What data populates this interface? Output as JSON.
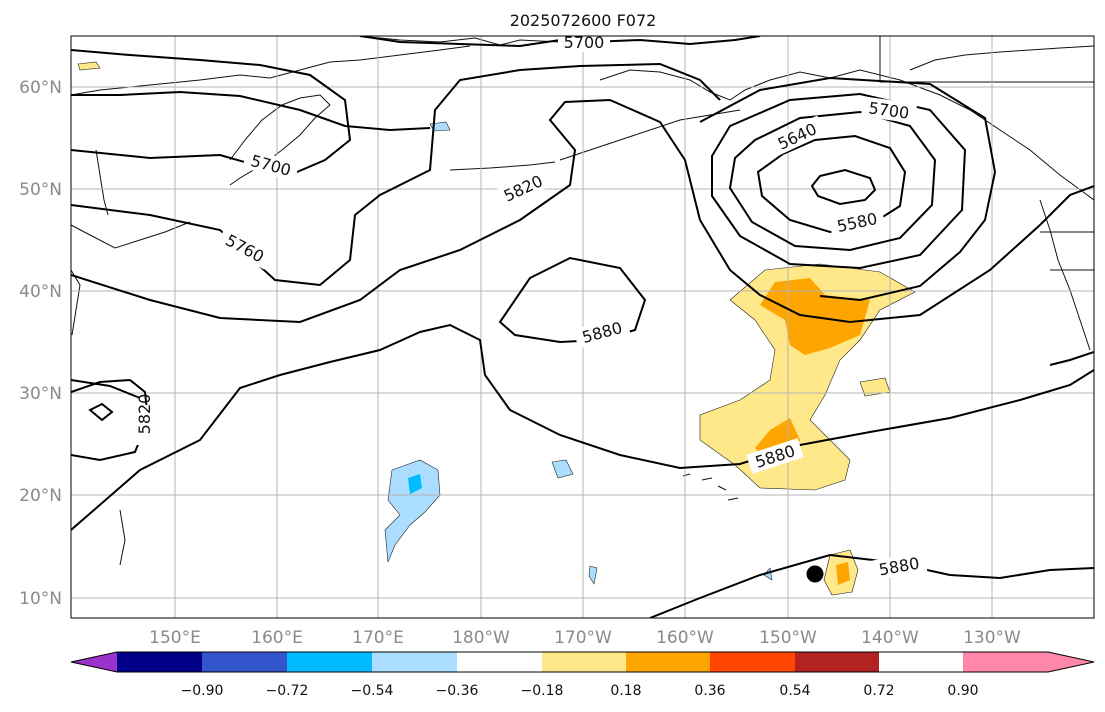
{
  "title": "2025072600 F072",
  "map": {
    "lat_labels": [
      "60°N",
      "50°N",
      "40°N",
      "30°N",
      "20°N",
      "10°N"
    ],
    "lon_labels": [
      "150°E",
      "160°E",
      "170°E",
      "180°W",
      "170°W",
      "160°W",
      "150°W",
      "140°W",
      "130°W"
    ],
    "grid": true,
    "contour_color": "#000000",
    "contour_labels": [
      "5700",
      "5700",
      "5640",
      "5580",
      "5820",
      "5760",
      "5820",
      "5880",
      "5880",
      "5880"
    ],
    "marker": "typhoon-center-dot"
  },
  "colorbar": {
    "colors": [
      "#9933cc",
      "#000088",
      "#3355cc",
      "#00bbff",
      "#aaddff",
      "#ffffff",
      "#ffe88a",
      "#ffa500",
      "#ff4500",
      "#b22222",
      "#ff88aa"
    ],
    "ticks": [
      "−0.90",
      "−0.72",
      "−0.54",
      "−0.36",
      "−0.18",
      "0.18",
      "0.36",
      "0.54",
      "0.72",
      "0.90"
    ]
  }
}
